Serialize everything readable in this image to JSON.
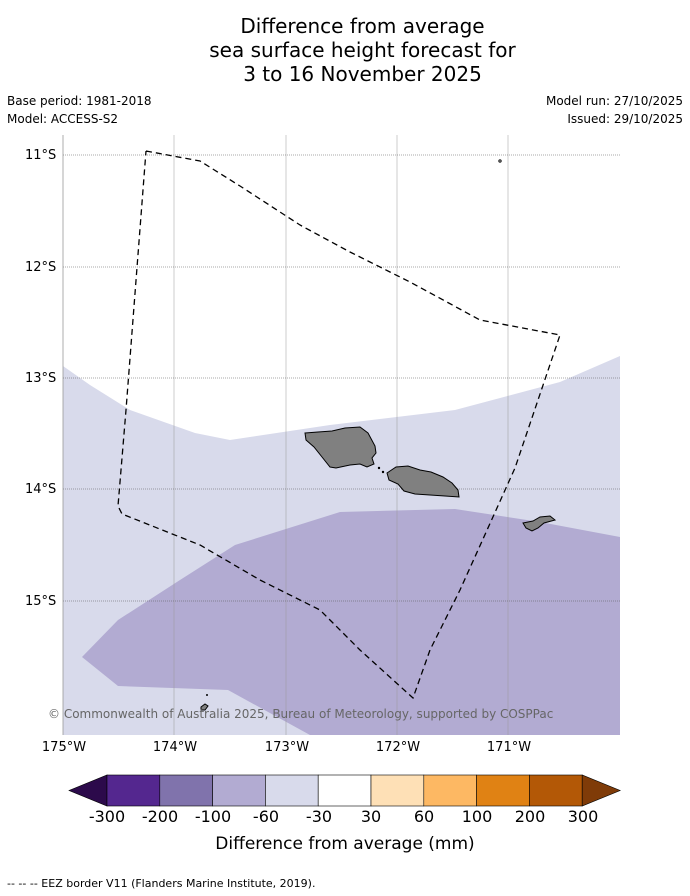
{
  "title": {
    "line1": "Difference from average",
    "line2": "sea surface height forecast for",
    "line3": "3 to 16 November 2025"
  },
  "meta": {
    "base_period": "Base period: 1981-2018",
    "model": "Model: ACCESS-S2",
    "model_run": "Model run: 27/10/2025",
    "issued": "Issued: 29/10/2025"
  },
  "map": {
    "lat_labels": [
      "11°S",
      "12°S",
      "13°S",
      "14°S",
      "15°S"
    ],
    "lon_labels": [
      "175°W",
      "174°W",
      "173°W",
      "172°W",
      "171°W"
    ],
    "copyright": "© Commonwealth of Australia 2025, Bureau of Meteorology, supported by COSPPac"
  },
  "colorbar": {
    "ticks": [
      "-300",
      "-200",
      "-100",
      "-60",
      "-30",
      "30",
      "60",
      "100",
      "200",
      "300"
    ],
    "colors": [
      "#2c0a4b",
      "#54278f",
      "#8073ac",
      "#b2abd2",
      "#d8daeb",
      "#ffffff",
      "#fee0b6",
      "#fdb863",
      "#e08214",
      "#b35806",
      "#7f3b08"
    ],
    "label": "Difference from average (mm)"
  },
  "footnote": "--  --  -- EEZ border V11 (Flanders Marine Institute, 2019)."
}
